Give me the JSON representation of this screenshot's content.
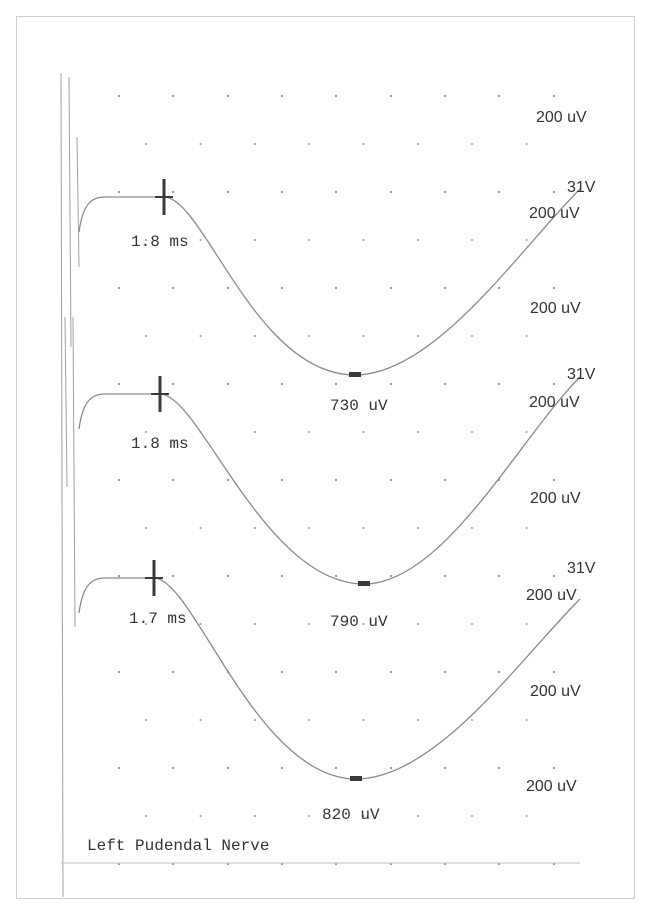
{
  "chart_data": {
    "type": "line",
    "title": "Left Pudendal Nerve",
    "xlabel": "",
    "ylabel": "",
    "grid": true,
    "sensitivity_labels": [
      "200 uV",
      "200 uV",
      "200 uV",
      "200 uV",
      "200 uV",
      "200 uV",
      "200 uV"
    ],
    "series": [
      {
        "trace_label": "31V",
        "latency": {
          "value": 1.8,
          "label": "1.8 ms"
        },
        "amplitude": {
          "value": 730,
          "label": "730 uV"
        }
      },
      {
        "trace_label": "31V",
        "latency": {
          "value": 1.8,
          "label": "1.8 ms"
        },
        "amplitude": {
          "value": 790,
          "label": "790 uV"
        }
      },
      {
        "trace_label": "31V",
        "latency": {
          "value": 1.7,
          "label": "1.7 ms"
        },
        "amplitude": {
          "value": 820,
          "label": "820 uV"
        }
      }
    ]
  },
  "colors": {
    "trace": "#8a8a8a",
    "marker": "#3a3a3a",
    "text": "#333333",
    "grid_dot": "#9a9a9a",
    "frame": "#cfcfcf"
  }
}
